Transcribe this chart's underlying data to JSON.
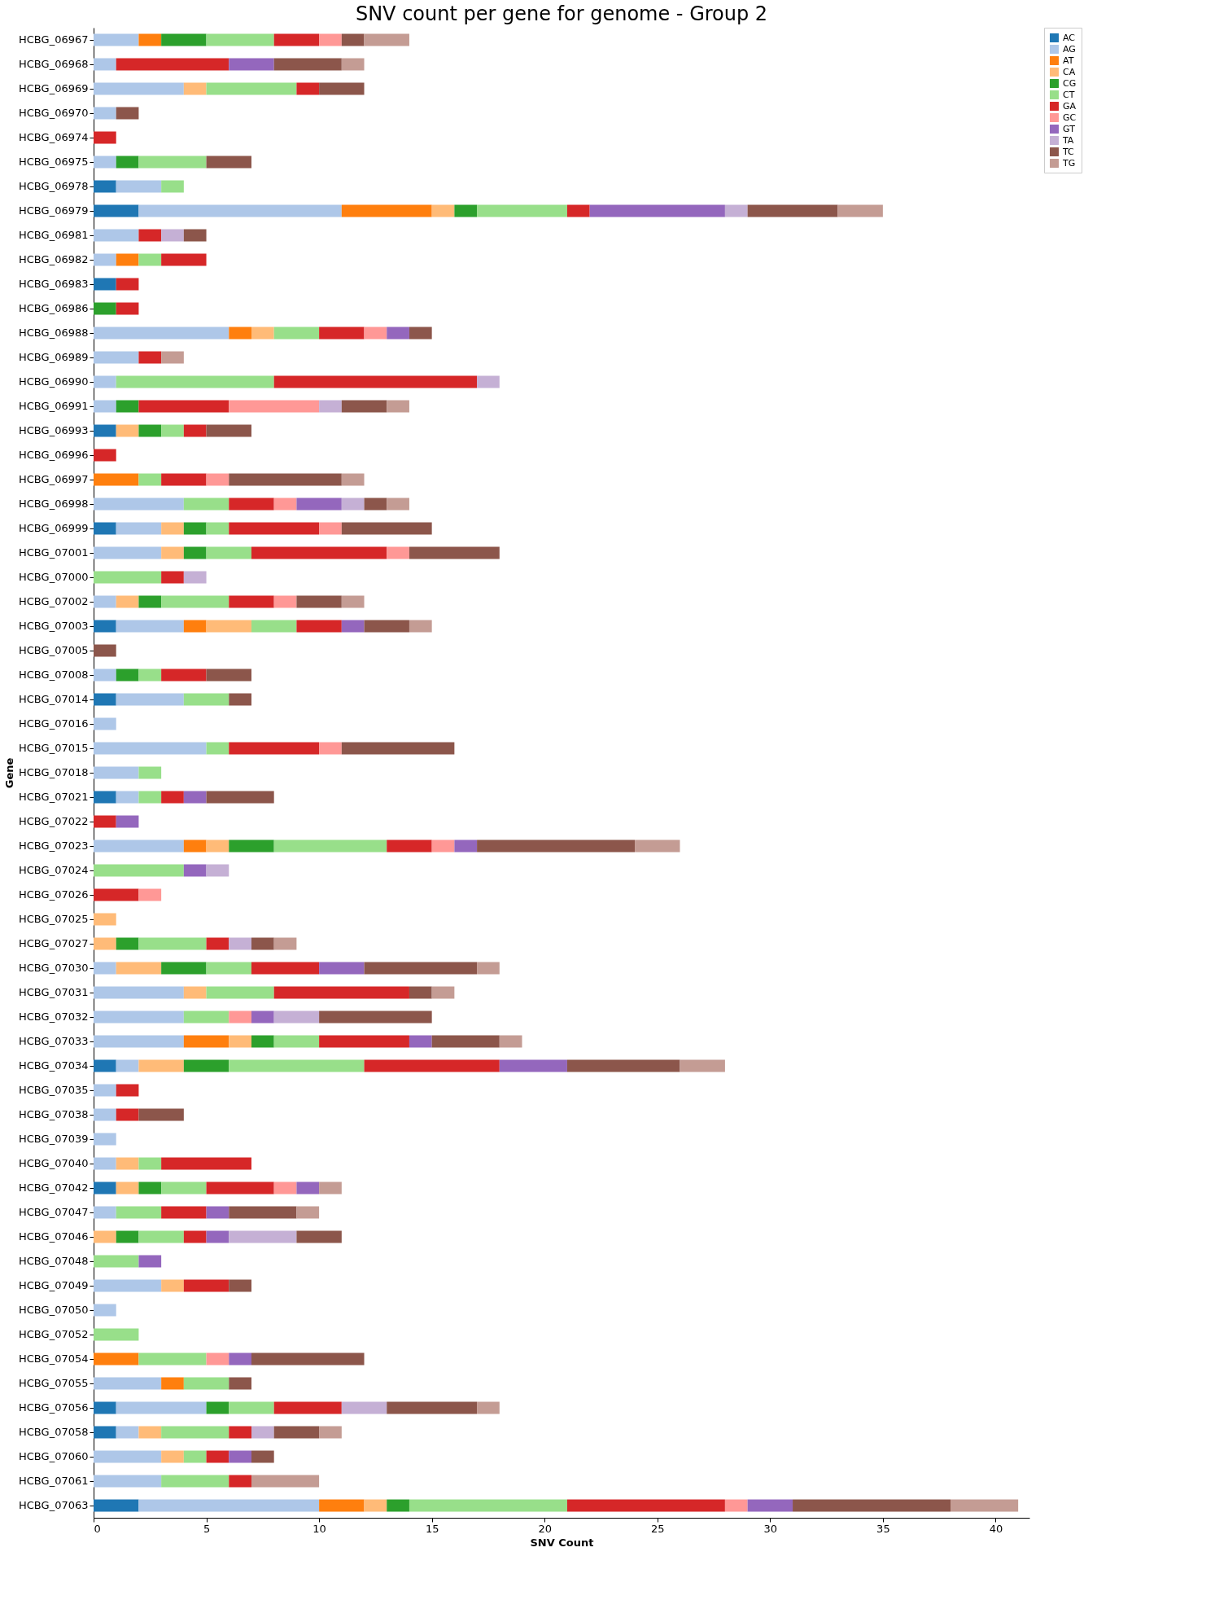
{
  "chart_data": {
    "type": "bar",
    "orientation": "horizontal",
    "stacked": true,
    "title": "SNV count per gene for genome - Group 2",
    "xlabel": "SNV Count",
    "ylabel": "Gene",
    "categories": [
      "HCBG_06967",
      "HCBG_06968",
      "HCBG_06969",
      "HCBG_06970",
      "HCBG_06974",
      "HCBG_06975",
      "HCBG_06978",
      "HCBG_06979",
      "HCBG_06981",
      "HCBG_06982",
      "HCBG_06983",
      "HCBG_06986",
      "HCBG_06988",
      "HCBG_06989",
      "HCBG_06990",
      "HCBG_06991",
      "HCBG_06993",
      "HCBG_06996",
      "HCBG_06997",
      "HCBG_06998",
      "HCBG_06999",
      "HCBG_07001",
      "HCBG_07000",
      "HCBG_07002",
      "HCBG_07003",
      "HCBG_07005",
      "HCBG_07008",
      "HCBG_07014",
      "HCBG_07016",
      "HCBG_07015",
      "HCBG_07018",
      "HCBG_07021",
      "HCBG_07022",
      "HCBG_07023",
      "HCBG_07024",
      "HCBG_07026",
      "HCBG_07025",
      "HCBG_07027",
      "HCBG_07030",
      "HCBG_07031",
      "HCBG_07032",
      "HCBG_07033",
      "HCBG_07034",
      "HCBG_07035",
      "HCBG_07038",
      "HCBG_07039",
      "HCBG_07040",
      "HCBG_07042",
      "HCBG_07047",
      "HCBG_07046",
      "HCBG_07048",
      "HCBG_07049",
      "HCBG_07050",
      "HCBG_07052",
      "HCBG_07054",
      "HCBG_07055",
      "HCBG_07056",
      "HCBG_07058",
      "HCBG_07060",
      "HCBG_07061",
      "HCBG_07063"
    ],
    "series": [
      {
        "name": "AC",
        "color": "#1f77b4",
        "values": [
          null,
          null,
          null,
          null,
          null,
          null,
          1,
          2,
          null,
          null,
          1,
          null,
          null,
          null,
          null,
          null,
          1,
          null,
          null,
          null,
          1,
          null,
          null,
          null,
          1,
          null,
          null,
          1,
          null,
          null,
          null,
          1,
          null,
          null,
          null,
          null,
          null,
          null,
          null,
          null,
          null,
          null,
          1,
          null,
          null,
          null,
          null,
          1,
          null,
          null,
          null,
          null,
          null,
          null,
          null,
          null,
          1,
          1,
          null,
          null,
          2
        ]
      },
      {
        "name": "AG",
        "color": "#aec7e8",
        "values": [
          2,
          1,
          4,
          1,
          null,
          1,
          2,
          9,
          2,
          1,
          null,
          null,
          6,
          2,
          1,
          1,
          null,
          null,
          null,
          4,
          2,
          3,
          null,
          1,
          3,
          null,
          1,
          3,
          1,
          5,
          2,
          1,
          null,
          4,
          null,
          null,
          null,
          null,
          1,
          4,
          4,
          4,
          1,
          1,
          1,
          1,
          1,
          null,
          1,
          null,
          null,
          3,
          1,
          null,
          null,
          3,
          4,
          1,
          3,
          3,
          8
        ]
      },
      {
        "name": "AT",
        "color": "#ff7f0e",
        "values": [
          1,
          null,
          null,
          null,
          null,
          null,
          null,
          4,
          null,
          1,
          null,
          null,
          1,
          null,
          null,
          null,
          null,
          null,
          2,
          null,
          null,
          null,
          null,
          null,
          1,
          null,
          null,
          null,
          null,
          null,
          null,
          null,
          null,
          1,
          null,
          null,
          null,
          null,
          null,
          null,
          null,
          2,
          null,
          null,
          null,
          null,
          null,
          null,
          null,
          null,
          null,
          null,
          null,
          null,
          2,
          1,
          null,
          null,
          null,
          null,
          2
        ]
      },
      {
        "name": "CA",
        "color": "#ffbb78",
        "values": [
          null,
          null,
          1,
          null,
          null,
          null,
          null,
          1,
          null,
          null,
          null,
          null,
          1,
          null,
          null,
          null,
          1,
          null,
          null,
          null,
          1,
          1,
          null,
          1,
          2,
          null,
          null,
          null,
          null,
          null,
          null,
          null,
          null,
          1,
          null,
          null,
          1,
          1,
          2,
          1,
          null,
          1,
          2,
          null,
          null,
          null,
          1,
          1,
          null,
          1,
          null,
          1,
          null,
          null,
          null,
          null,
          null,
          1,
          1,
          null,
          1
        ]
      },
      {
        "name": "CG",
        "color": "#2ca02c",
        "values": [
          2,
          null,
          null,
          null,
          null,
          1,
          null,
          1,
          null,
          null,
          null,
          1,
          null,
          null,
          null,
          1,
          1,
          null,
          null,
          null,
          1,
          1,
          null,
          1,
          null,
          null,
          1,
          null,
          null,
          null,
          null,
          null,
          null,
          2,
          null,
          null,
          null,
          1,
          2,
          null,
          null,
          1,
          2,
          null,
          null,
          null,
          null,
          1,
          null,
          1,
          null,
          null,
          null,
          null,
          null,
          null,
          1,
          null,
          null,
          null,
          1
        ]
      },
      {
        "name": "CT",
        "color": "#98df8a",
        "values": [
          3,
          null,
          4,
          null,
          null,
          3,
          1,
          4,
          null,
          1,
          null,
          null,
          2,
          null,
          7,
          null,
          1,
          null,
          1,
          2,
          1,
          2,
          3,
          3,
          2,
          null,
          1,
          2,
          null,
          1,
          1,
          1,
          null,
          5,
          4,
          null,
          null,
          3,
          2,
          3,
          2,
          2,
          6,
          null,
          null,
          null,
          1,
          2,
          2,
          2,
          2,
          null,
          null,
          2,
          3,
          2,
          2,
          3,
          1,
          3,
          7
        ]
      },
      {
        "name": "GA",
        "color": "#d62728",
        "values": [
          2,
          5,
          1,
          null,
          1,
          null,
          null,
          1,
          1,
          2,
          1,
          1,
          2,
          1,
          9,
          4,
          1,
          1,
          2,
          2,
          4,
          6,
          1,
          2,
          2,
          null,
          2,
          null,
          null,
          4,
          null,
          1,
          1,
          2,
          null,
          2,
          null,
          1,
          3,
          6,
          null,
          4,
          6,
          1,
          1,
          null,
          4,
          3,
          2,
          1,
          null,
          2,
          null,
          null,
          null,
          null,
          3,
          1,
          1,
          1,
          7
        ]
      },
      {
        "name": "GC",
        "color": "#ff9896",
        "values": [
          1,
          null,
          null,
          null,
          null,
          null,
          null,
          null,
          null,
          null,
          null,
          null,
          1,
          null,
          null,
          4,
          null,
          null,
          1,
          1,
          1,
          1,
          null,
          1,
          null,
          null,
          null,
          null,
          null,
          1,
          null,
          null,
          null,
          1,
          null,
          1,
          null,
          null,
          null,
          null,
          1,
          null,
          null,
          null,
          null,
          null,
          null,
          1,
          null,
          null,
          null,
          null,
          null,
          null,
          1,
          null,
          null,
          null,
          null,
          null,
          1
        ]
      },
      {
        "name": "GT",
        "color": "#9467bd",
        "values": [
          null,
          2,
          null,
          null,
          null,
          null,
          null,
          6,
          null,
          null,
          null,
          null,
          1,
          null,
          null,
          null,
          null,
          null,
          null,
          2,
          null,
          null,
          null,
          null,
          1,
          null,
          null,
          null,
          null,
          null,
          null,
          1,
          1,
          1,
          1,
          null,
          null,
          null,
          2,
          null,
          1,
          1,
          3,
          null,
          null,
          null,
          null,
          1,
          1,
          1,
          1,
          null,
          null,
          null,
          1,
          null,
          null,
          null,
          1,
          null,
          2
        ]
      },
      {
        "name": "TA",
        "color": "#c5b0d5",
        "values": [
          null,
          null,
          null,
          null,
          null,
          null,
          null,
          1,
          1,
          null,
          null,
          null,
          null,
          null,
          1,
          1,
          null,
          null,
          null,
          1,
          null,
          null,
          1,
          null,
          null,
          null,
          null,
          null,
          null,
          null,
          null,
          null,
          null,
          null,
          1,
          null,
          null,
          1,
          null,
          null,
          2,
          null,
          null,
          null,
          null,
          null,
          null,
          null,
          null,
          3,
          null,
          null,
          null,
          null,
          null,
          null,
          2,
          1,
          null,
          null,
          null
        ]
      },
      {
        "name": "TC",
        "color": "#8c564b",
        "values": [
          1,
          3,
          2,
          1,
          null,
          2,
          null,
          4,
          1,
          null,
          null,
          null,
          1,
          null,
          null,
          2,
          2,
          null,
          5,
          1,
          4,
          4,
          null,
          2,
          2,
          1,
          2,
          1,
          null,
          5,
          null,
          3,
          null,
          7,
          null,
          null,
          null,
          1,
          5,
          1,
          5,
          3,
          5,
          null,
          2,
          null,
          null,
          null,
          3,
          2,
          null,
          1,
          null,
          null,
          5,
          1,
          4,
          2,
          1,
          null,
          7
        ]
      },
      {
        "name": "TG",
        "color": "#c49c94",
        "values": [
          2,
          1,
          null,
          null,
          null,
          null,
          null,
          2,
          null,
          null,
          null,
          null,
          null,
          1,
          null,
          1,
          null,
          null,
          1,
          1,
          null,
          null,
          null,
          1,
          1,
          null,
          null,
          null,
          null,
          null,
          null,
          null,
          null,
          2,
          null,
          null,
          null,
          1,
          1,
          1,
          null,
          1,
          2,
          null,
          null,
          null,
          null,
          1,
          1,
          null,
          null,
          null,
          null,
          null,
          null,
          null,
          1,
          1,
          null,
          3,
          3
        ]
      }
    ],
    "xlim": [
      0,
      41.5
    ],
    "xticks": [
      0,
      5,
      10,
      15,
      20,
      25,
      30,
      35,
      40
    ],
    "legend": "top right",
    "grid": false
  }
}
